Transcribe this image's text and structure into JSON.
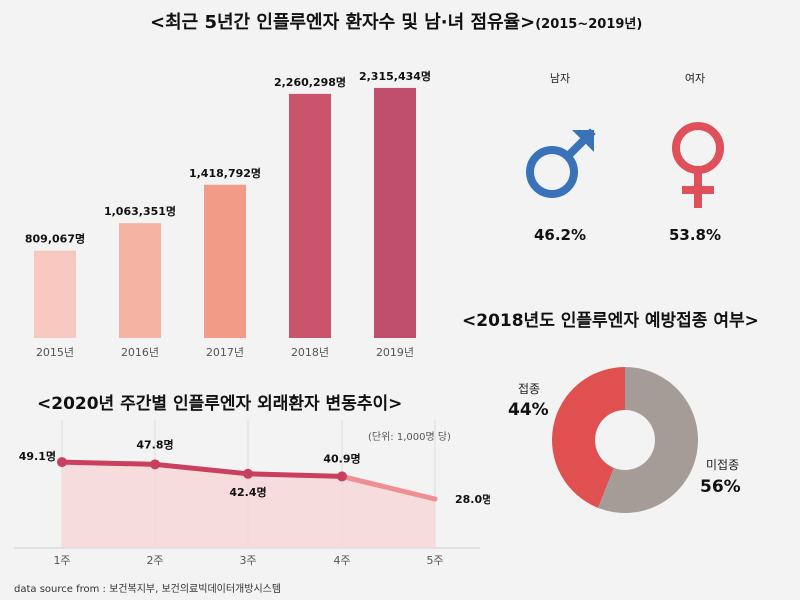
{
  "title": {
    "main": "<최근 5년간 인플루엔자 환자수 및 남·녀 점유율>",
    "sub": "(2015~2019년)"
  },
  "sex_share": {
    "male_label": "남자",
    "female_label": "여자",
    "male_pct": "46.2%",
    "female_pct": "53.8%",
    "male_color": "#3a72b8",
    "female_color": "#e0505a"
  },
  "section2_title": "<2020년 주간별 인플루엔자 외래환자 변동추이>",
  "section3_title": "<2018년도 인플루엔자 예방접종 여부>",
  "unit_note": "(단위: 1,000명 당)",
  "footer": "data source from : 보건복지부, 보건의료빅데이터개방시스템",
  "chart_data": [
    {
      "type": "bar",
      "categories": [
        "2015년",
        "2016년",
        "2017년",
        "2018년",
        "2019년"
      ],
      "values": [
        809067,
        1063351,
        1418792,
        2260298,
        2315434
      ],
      "value_labels": [
        "809,067명",
        "1,063,351명",
        "1,418,792명",
        "2,260,298명",
        "2,315,434명"
      ],
      "colors": [
        "#f7c8c0",
        "#f5b3a3",
        "#f29b87",
        "#c9546c",
        "#c04f6e"
      ],
      "ylim": [
        0,
        2500000
      ]
    },
    {
      "type": "line",
      "categories": [
        "1주",
        "2주",
        "3주",
        "4주",
        "5주"
      ],
      "values": [
        49.1,
        47.8,
        42.4,
        40.9,
        28.0
      ],
      "value_labels": [
        "49.1명",
        "47.8명",
        "42.4명",
        "40.9명",
        "28.0명"
      ],
      "color": "#c9405e",
      "area_color": "#f6d6d6",
      "ylim": [
        0,
        60
      ]
    },
    {
      "type": "pie",
      "categories": [
        "접종",
        "미접종"
      ],
      "values": [
        44,
        56
      ],
      "value_labels": [
        "44%",
        "56%"
      ],
      "colors": [
        "#e05050",
        "#a59c97"
      ]
    }
  ]
}
